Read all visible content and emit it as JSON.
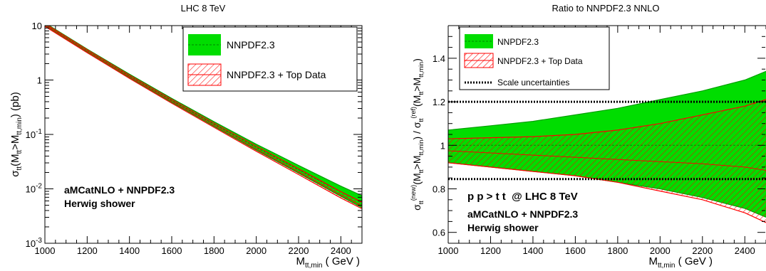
{
  "chart_data": [
    {
      "type": "area",
      "title": "LHC 8 TeV",
      "xlabel_main": "M",
      "xlabel_sub": "tt,min",
      "xlabel_unit": " ( GeV )",
      "ylabel_html": "σ_tt(M_tt>M_tt,min) (pb)",
      "xlim": [
        1000,
        2500
      ],
      "ylim": [
        0.001,
        10
      ],
      "yscale": "log",
      "x_ticks": [
        "1000",
        "1200",
        "1400",
        "1600",
        "1800",
        "2000",
        "2200",
        "2400"
      ],
      "y_ticks": [
        {
          "value": 0.001,
          "base": "10",
          "exp": "-3"
        },
        {
          "value": 0.01,
          "base": "10",
          "exp": "-2"
        },
        {
          "value": 0.1,
          "base": "10",
          "exp": "-1"
        },
        {
          "value": 1,
          "base": "1",
          "exp": ""
        },
        {
          "value": 10,
          "base": "10",
          "exp": ""
        }
      ],
      "series": [
        {
          "name": "NNPDF2.3",
          "style": "solid-band",
          "color": "#00dd00",
          "x": [
            1000,
            1200,
            1400,
            1600,
            1800,
            2000,
            2200,
            2400,
            2500
          ],
          "central": [
            10.5,
            3.45,
            1.18,
            0.42,
            0.155,
            0.058,
            0.0225,
            0.0088,
            0.0057
          ],
          "lower": [
            9.9,
            3.25,
            1.1,
            0.39,
            0.141,
            0.0515,
            0.0195,
            0.0073,
            0.0045
          ],
          "upper": [
            11.2,
            3.7,
            1.28,
            0.46,
            0.172,
            0.066,
            0.027,
            0.0112,
            0.0075
          ]
        },
        {
          "name": "NNPDF2.3 + Top Data",
          "style": "hatched-band",
          "color": "#ff0000",
          "x": [
            1000,
            1200,
            1400,
            1600,
            1800,
            2000,
            2200,
            2400,
            2500
          ],
          "central": [
            10.3,
            3.38,
            1.15,
            0.405,
            0.148,
            0.054,
            0.0205,
            0.0077,
            0.0049
          ],
          "lower": [
            9.7,
            3.18,
            1.07,
            0.375,
            0.135,
            0.049,
            0.0183,
            0.0068,
            0.0043
          ],
          "upper": [
            10.9,
            3.6,
            1.23,
            0.44,
            0.162,
            0.061,
            0.0235,
            0.0089,
            0.0057
          ]
        }
      ],
      "annotations": [
        "aMCatNLO + NNPDF2.3",
        "Herwig shower"
      ]
    },
    {
      "type": "area",
      "title": "Ratio to NNPDF2.3 NNLO",
      "xlabel_main": "M",
      "xlabel_sub": "tt,min",
      "xlabel_unit": " ( GeV )",
      "ylabel_html": "σ_tt^(new)(M_tt>M_tt,min) / σ_tt^(ref)(M_tt>M_tt,min)",
      "xlim": [
        1000,
        2500
      ],
      "ylim": [
        0.55,
        1.55
      ],
      "x_ticks": [
        "1000",
        "1200",
        "1400",
        "1600",
        "1800",
        "2000",
        "2200",
        "2400"
      ],
      "y_ticks": [
        "0.6",
        "0.8",
        "1",
        "1.2",
        "1.4"
      ],
      "series": [
        {
          "name": "NNPDF2.3",
          "style": "solid-band",
          "color": "#00dd00",
          "x": [
            1000,
            1200,
            1400,
            1600,
            1800,
            2000,
            2200,
            2400,
            2500
          ],
          "central": [
            1.0,
            1.0,
            1.0,
            1.0,
            1.0,
            1.0,
            1.0,
            1.0,
            1.0
          ],
          "lower": [
            0.92,
            0.9,
            0.88,
            0.86,
            0.83,
            0.8,
            0.76,
            0.71,
            0.67
          ],
          "upper": [
            1.07,
            1.09,
            1.11,
            1.14,
            1.17,
            1.21,
            1.25,
            1.3,
            1.34
          ]
        },
        {
          "name": "NNPDF2.3 + Top Data",
          "style": "hatched-band",
          "color": "#ff0000",
          "x": [
            1000,
            1200,
            1400,
            1600,
            1800,
            2000,
            2200,
            2400,
            2500
          ],
          "central": [
            0.975,
            0.965,
            0.955,
            0.945,
            0.935,
            0.925,
            0.915,
            0.9,
            0.885
          ],
          "lower": [
            0.92,
            0.9,
            0.88,
            0.86,
            0.83,
            0.79,
            0.75,
            0.69,
            0.645
          ],
          "upper": [
            1.03,
            1.035,
            1.04,
            1.05,
            1.07,
            1.1,
            1.14,
            1.18,
            1.21
          ]
        },
        {
          "name": "Scale uncertainties",
          "style": "dotted-line",
          "color": "#000000",
          "lines": [
            1.2,
            0.845
          ]
        }
      ],
      "annotations": [
        "p p > t t  @ LHC 8 TeV",
        "aMCatNLO + NNPDF2.3",
        "Herwig shower"
      ]
    }
  ]
}
